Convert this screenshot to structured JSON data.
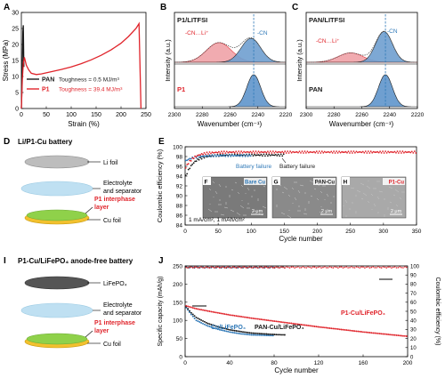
{
  "colors": {
    "pan": "#1a1a1a",
    "p1": "#e0242b",
    "blue": "#2e78b7",
    "blue_fill": "#6f9fd0",
    "red_fill": "#f0a3a8",
    "grey_fill": "#d9d9d9",
    "dash": "#2e78b7",
    "li_foil": "#bdbdbd",
    "separator": "#bfe0f2",
    "interphase": "#8fd14a",
    "cu": "#f2c12e",
    "lifepo4": "#555555",
    "green_text": "#3c8d2f"
  },
  "panels": {
    "A": "A",
    "B": "B",
    "C": "C",
    "D": "D",
    "E": "E",
    "I": "I",
    "J": "J"
  },
  "chart_data": [
    {
      "id": "A",
      "type": "line",
      "xlabel": "Strain (%)",
      "ylabel": "Stress (MPa)",
      "xlim": [
        0,
        250
      ],
      "ylim": [
        0,
        30
      ],
      "xticks": [
        "0",
        "50",
        "100",
        "150",
        "200",
        "250"
      ],
      "yticks": [
        "0",
        "5",
        "10",
        "15",
        "20",
        "25",
        "30"
      ],
      "series": [
        {
          "name": "PAN",
          "color": "#1a1a1a",
          "x": [
            0,
            1,
            2,
            3,
            4,
            5
          ],
          "y": [
            0,
            6,
            14,
            24,
            26,
            13
          ]
        },
        {
          "name": "P1",
          "color": "#e0242b",
          "x": [
            0,
            2,
            4,
            6,
            10,
            15,
            20,
            30,
            40,
            60,
            80,
            100,
            120,
            140,
            160,
            180,
            200,
            215,
            230,
            236,
            240
          ],
          "y": [
            0,
            9,
            14,
            16,
            13.5,
            12,
            11,
            10.6,
            10.8,
            11.5,
            12.2,
            13,
            14,
            15.2,
            16.6,
            18.3,
            20.4,
            22.5,
            25,
            26.5,
            0
          ]
        }
      ],
      "legend": [
        {
          "label": "PAN",
          "note": "Toughness = 0.5 MJ/m³"
        },
        {
          "label": "P1",
          "note": "Toughness = 39.4 MJ/m³"
        }
      ]
    },
    {
      "id": "B",
      "type": "area",
      "xlabel": "Wavenumber (cm⁻¹)",
      "ylabel": "Intensity (a.u.)",
      "xlim": [
        2300,
        2220
      ],
      "xticks": [
        "2300",
        "2280",
        "2260",
        "2240",
        "2220"
      ],
      "top_label": "P1/LITFSI",
      "bottom_label": "P1",
      "peak_labels": [
        "-CN…Li⁺",
        "-CN"
      ],
      "dashed_x": 2243,
      "top_peaks": [
        {
          "name": "-CN…Li⁺",
          "center": 2268,
          "width": 9,
          "height": 0.46
        },
        {
          "name": "-CN",
          "center": 2245,
          "width": 7,
          "height": 0.56
        }
      ],
      "bottom_peak": {
        "center": 2243,
        "width": 5,
        "height": 0.7
      }
    },
    {
      "id": "C",
      "type": "area",
      "xlabel": "Wavenumber (cm⁻¹)",
      "ylabel": "Intensity (a.u.)",
      "xlim": [
        2300,
        2220
      ],
      "xticks": [
        "2300",
        "2280",
        "2260",
        "2240",
        "2220"
      ],
      "top_label": "PAN/LITFSI",
      "bottom_label": "PAN",
      "peak_labels": [
        "-CN…Li⁺",
        "-CN"
      ],
      "dashed_x": 2243,
      "top_peaks": [
        {
          "name": "-CN…Li⁺",
          "center": 2268,
          "width": 9,
          "height": 0.22
        },
        {
          "name": "-CN",
          "center": 2244,
          "width": 6,
          "height": 0.72
        }
      ],
      "bottom_peak": {
        "center": 2243,
        "width": 5,
        "height": 0.7
      }
    },
    {
      "id": "E",
      "type": "scatter",
      "xlabel": "Cycle number",
      "ylabel": "Coulombic efficiency (%)",
      "xlim": [
        0,
        350
      ],
      "ylim": [
        84,
        100
      ],
      "xticks": [
        "0",
        "50",
        "100",
        "150",
        "200",
        "250",
        "300",
        "350"
      ],
      "yticks": [
        "84",
        "86",
        "88",
        "90",
        "92",
        "94",
        "96",
        "98",
        "100"
      ],
      "series": [
        {
          "name": "Bare Cu",
          "color": "#1a1a1a",
          "end": 150,
          "start_value": 93.6,
          "plateau": 98.3
        },
        {
          "name": "PAN-Cu",
          "color": "#2e78b7",
          "end": 100,
          "start_value": 97,
          "plateau": 98.2
        },
        {
          "name": "P1-Cu",
          "color": "#e0242b",
          "end": 350,
          "start_value": 95.5,
          "plateau": 98.9
        }
      ],
      "annotations": [
        "Battery failure",
        "Battery failure",
        "1 mA/cm², 1 mAh/cm²"
      ],
      "insets": [
        {
          "letter": "F",
          "label": "Bare Cu"
        },
        {
          "letter": "G",
          "label": "PAN-Cu"
        },
        {
          "letter": "H",
          "label": "P1-Cu"
        }
      ],
      "scale_bars": [
        "2 μm",
        "2 μm",
        "2 μm"
      ]
    },
    {
      "id": "J",
      "type": "scatter",
      "xlabel": "Cycle number",
      "ylabel": "Specific capacity (mAh/g)",
      "y2label": "Coulombic efficiency (%)",
      "xlim": [
        0,
        200
      ],
      "ylim": [
        0,
        250
      ],
      "y2lim": [
        0,
        100
      ],
      "xticks": [
        "0",
        "40",
        "80",
        "120",
        "160",
        "200"
      ],
      "yticks": [
        "0",
        "50",
        "100",
        "150",
        "200",
        "250"
      ],
      "y2ticks": [
        "0",
        "10",
        "20",
        "30",
        "40",
        "50",
        "60",
        "70",
        "80",
        "90",
        "100"
      ],
      "series": [
        {
          "name": "Cu/LiFePO₄",
          "color": "#2e78b7",
          "x": [
            1,
            5,
            10,
            20,
            30,
            40,
            50,
            60,
            70,
            80
          ],
          "capacity": [
            135,
            118,
            100,
            85,
            75,
            68,
            63,
            60,
            59,
            58
          ],
          "end": 80
        },
        {
          "name": "PAN-Cu/LiFePO₄",
          "color": "#1a1a1a",
          "x": [
            1,
            5,
            10,
            20,
            30,
            40,
            50,
            60,
            70,
            80,
            90
          ],
          "capacity": [
            138,
            122,
            108,
            92,
            82,
            74,
            69,
            65,
            63,
            61,
            60
          ],
          "end": 90
        },
        {
          "name": "P1-Cu/LiFePO₄",
          "color": "#e0242b",
          "x": [
            1,
            10,
            20,
            40,
            60,
            80,
            100,
            120,
            140,
            160,
            180,
            200
          ],
          "capacity": [
            140,
            132,
            126,
            115,
            106,
            98,
            90,
            82,
            75,
            68,
            62,
            56
          ],
          "end": 200
        }
      ]
    }
  ],
  "D": {
    "title": "Li/P1-Cu battery",
    "layers": [
      "Li foil",
      "Electrolyte",
      "and separator",
      "P1 interphase",
      "layer",
      "Cu foil"
    ]
  },
  "I": {
    "title": "P1-Cu/LiFePO₄ anode-free battery",
    "layers": [
      "LiFePO₄",
      "Electrolyte",
      "and separator",
      "P1 interphase",
      "layer",
      "Cu foil"
    ]
  }
}
